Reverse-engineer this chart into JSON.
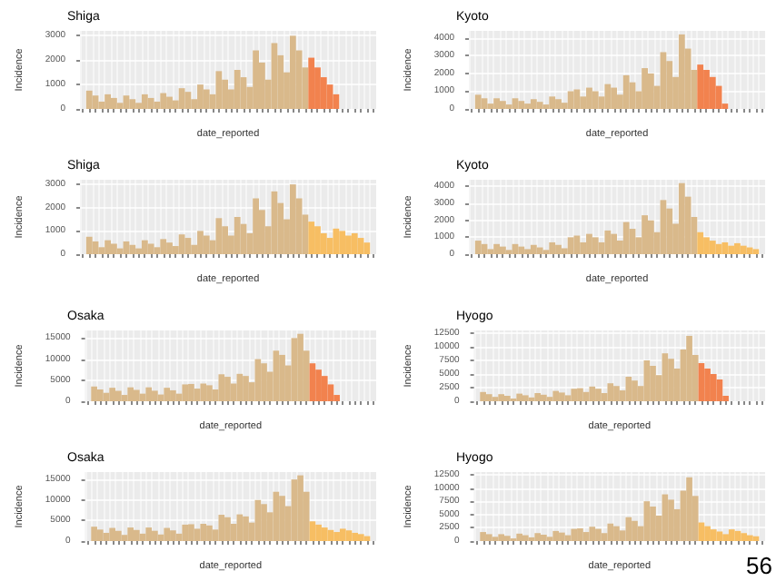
{
  "chart_data": [
    {
      "type": "bar",
      "title": "Shiga",
      "xlabel": "date_reported",
      "ylabel": "Incidence",
      "categories": [
        null,
        null,
        null,
        null,
        null,
        null,
        null,
        null,
        null,
        null,
        null,
        null,
        null,
        null,
        null,
        null,
        null,
        null,
        null,
        null,
        null,
        null,
        null,
        null,
        null,
        null,
        null,
        null,
        null,
        null,
        null,
        null,
        null,
        null,
        null,
        null,
        null,
        null,
        null,
        null,
        null,
        null,
        null,
        null,
        null,
        null,
        null,
        null
      ],
      "values": [
        null,
        750,
        550,
        300,
        600,
        450,
        250,
        550,
        400,
        250,
        600,
        450,
        300,
        650,
        500,
        350,
        850,
        700,
        400,
        1000,
        800,
        600,
        1550,
        1200,
        800,
        1600,
        1300,
        900,
        2400,
        1900,
        1200,
        2700,
        2200,
        1500,
        3000,
        2400,
        1700,
        2100,
        1700,
        1300,
        1000,
        600,
        null,
        null,
        null,
        null,
        null,
        null
      ],
      "colors": [
        "#d9b98b",
        "#d9b98b",
        "#d9b98b",
        "#d9b98b",
        "#d9b98b",
        "#d9b98b",
        "#d9b98b",
        "#d9b98b",
        "#d9b98b",
        "#d9b98b",
        "#d9b98b",
        "#d9b98b",
        "#d9b98b",
        "#d9b98b",
        "#d9b98b",
        "#d9b98b",
        "#d9b98b",
        "#d9b98b",
        "#d9b98b",
        "#d9b98b",
        "#d9b98b",
        "#d9b98b",
        "#d9b98b",
        "#d9b98b",
        "#d9b98b",
        "#d9b98b",
        "#d9b98b",
        "#d9b98b",
        "#d9b98b",
        "#d9b98b",
        "#d9b98b",
        "#d9b98b",
        "#d9b98b",
        "#d9b98b",
        "#d9b98b",
        "#d9b98b",
        "#d9b98b",
        "#f2824e",
        "#f2824e",
        "#f2824e",
        "#f2824e",
        "#f2824e",
        "#f2824e",
        "#f2824e",
        "#f2824e",
        "#f2824e",
        "#f2824e",
        "#f2824e"
      ],
      "ylim": [
        0,
        3200
      ],
      "yticks": [
        0,
        1000,
        2000,
        3000
      ],
      "grid": true,
      "tick_labels": "y"
    },
    {
      "type": "bar",
      "title": "Kyoto",
      "xlabel": "date_reported",
      "ylabel": "Incidence",
      "categories": [
        null,
        null,
        null,
        null,
        null,
        null,
        null,
        null,
        null,
        null,
        null,
        null,
        null,
        null,
        null,
        null,
        null,
        null,
        null,
        null,
        null,
        null,
        null,
        null,
        null,
        null,
        null,
        null,
        null,
        null,
        null,
        null,
        null,
        null,
        null,
        null,
        null,
        null,
        null,
        null,
        null,
        null,
        null,
        null,
        null,
        null,
        null,
        null
      ],
      "values": [
        null,
        800,
        600,
        300,
        600,
        450,
        250,
        600,
        450,
        300,
        550,
        400,
        250,
        700,
        550,
        350,
        1000,
        1100,
        700,
        1200,
        1000,
        700,
        1400,
        1200,
        800,
        1900,
        1500,
        1000,
        2300,
        2000,
        1300,
        3200,
        2700,
        1800,
        4200,
        3400,
        2200,
        2500,
        2200,
        1800,
        1300,
        300,
        null,
        null,
        null,
        null,
        null,
        null
      ],
      "colors": [
        "#d9b98b",
        "#d9b98b",
        "#d9b98b",
        "#d9b98b",
        "#d9b98b",
        "#d9b98b",
        "#d9b98b",
        "#d9b98b",
        "#d9b98b",
        "#d9b98b",
        "#d9b98b",
        "#d9b98b",
        "#d9b98b",
        "#d9b98b",
        "#d9b98b",
        "#d9b98b",
        "#d9b98b",
        "#d9b98b",
        "#d9b98b",
        "#d9b98b",
        "#d9b98b",
        "#d9b98b",
        "#d9b98b",
        "#d9b98b",
        "#d9b98b",
        "#d9b98b",
        "#d9b98b",
        "#d9b98b",
        "#d9b98b",
        "#d9b98b",
        "#d9b98b",
        "#d9b98b",
        "#d9b98b",
        "#d9b98b",
        "#d9b98b",
        "#d9b98b",
        "#d9b98b",
        "#f2824e",
        "#f2824e",
        "#f2824e",
        "#f2824e",
        "#f2824e",
        "#f2824e",
        "#f2824e",
        "#f2824e",
        "#f2824e",
        "#f2824e",
        "#f2824e"
      ],
      "ylim": [
        0,
        4400
      ],
      "yticks": [
        0,
        1000,
        2000,
        3000,
        4000
      ],
      "grid": true,
      "tick_labels": "y"
    },
    {
      "type": "bar",
      "title": "Shiga",
      "xlabel": "date_reported",
      "ylabel": "Incidence",
      "categories": [
        null,
        null,
        null,
        null,
        null,
        null,
        null,
        null,
        null,
        null,
        null,
        null,
        null,
        null,
        null,
        null,
        null,
        null,
        null,
        null,
        null,
        null,
        null,
        null,
        null,
        null,
        null,
        null,
        null,
        null,
        null,
        null,
        null,
        null,
        null,
        null,
        null,
        null,
        null,
        null,
        null,
        null,
        null,
        null,
        null,
        null,
        null,
        null
      ],
      "values": [
        null,
        750,
        550,
        300,
        600,
        450,
        250,
        550,
        400,
        250,
        600,
        450,
        300,
        650,
        500,
        350,
        850,
        700,
        400,
        1000,
        800,
        600,
        1550,
        1200,
        800,
        1600,
        1300,
        900,
        2400,
        1900,
        1200,
        2700,
        2200,
        1500,
        3000,
        2400,
        1700,
        1400,
        1200,
        900,
        700,
        1100,
        1000,
        800,
        900,
        700,
        500,
        null
      ],
      "colors": [
        "#d9b98b",
        "#d9b98b",
        "#d9b98b",
        "#d9b98b",
        "#d9b98b",
        "#d9b98b",
        "#d9b98b",
        "#d9b98b",
        "#d9b98b",
        "#d9b98b",
        "#d9b98b",
        "#d9b98b",
        "#d9b98b",
        "#d9b98b",
        "#d9b98b",
        "#d9b98b",
        "#d9b98b",
        "#d9b98b",
        "#d9b98b",
        "#d9b98b",
        "#d9b98b",
        "#d9b98b",
        "#d9b98b",
        "#d9b98b",
        "#d9b98b",
        "#d9b98b",
        "#d9b98b",
        "#d9b98b",
        "#d9b98b",
        "#d9b98b",
        "#d9b98b",
        "#d9b98b",
        "#d9b98b",
        "#d9b98b",
        "#d9b98b",
        "#d9b98b",
        "#d9b98b",
        "#f7be63",
        "#f7be63",
        "#f7be63",
        "#f7be63",
        "#f7be63",
        "#f7be63",
        "#f7be63",
        "#f7be63",
        "#f7be63",
        "#f7be63",
        "#f7be63"
      ],
      "ylim": [
        0,
        3200
      ],
      "yticks": [
        0,
        1000,
        2000,
        3000
      ],
      "grid": true,
      "tick_labels": "y"
    },
    {
      "type": "bar",
      "title": "Kyoto",
      "xlabel": "date_reported",
      "ylabel": "Incidence",
      "categories": [
        null,
        null,
        null,
        null,
        null,
        null,
        null,
        null,
        null,
        null,
        null,
        null,
        null,
        null,
        null,
        null,
        null,
        null,
        null,
        null,
        null,
        null,
        null,
        null,
        null,
        null,
        null,
        null,
        null,
        null,
        null,
        null,
        null,
        null,
        null,
        null,
        null,
        null,
        null,
        null,
        null,
        null,
        null,
        null,
        null,
        null,
        null,
        null
      ],
      "values": [
        null,
        800,
        600,
        300,
        600,
        450,
        250,
        600,
        450,
        300,
        550,
        400,
        250,
        700,
        550,
        350,
        1000,
        1100,
        700,
        1200,
        1000,
        700,
        1400,
        1200,
        800,
        1900,
        1500,
        1000,
        2300,
        2000,
        1300,
        3200,
        2700,
        1800,
        4200,
        3400,
        2200,
        1300,
        1000,
        800,
        600,
        700,
        500,
        650,
        500,
        400,
        300,
        null
      ],
      "colors": [
        "#d9b98b",
        "#d9b98b",
        "#d9b98b",
        "#d9b98b",
        "#d9b98b",
        "#d9b98b",
        "#d9b98b",
        "#d9b98b",
        "#d9b98b",
        "#d9b98b",
        "#d9b98b",
        "#d9b98b",
        "#d9b98b",
        "#d9b98b",
        "#d9b98b",
        "#d9b98b",
        "#d9b98b",
        "#d9b98b",
        "#d9b98b",
        "#d9b98b",
        "#d9b98b",
        "#d9b98b",
        "#d9b98b",
        "#d9b98b",
        "#d9b98b",
        "#d9b98b",
        "#d9b98b",
        "#d9b98b",
        "#d9b98b",
        "#d9b98b",
        "#d9b98b",
        "#d9b98b",
        "#d9b98b",
        "#d9b98b",
        "#d9b98b",
        "#d9b98b",
        "#d9b98b",
        "#f7be63",
        "#f7be63",
        "#f7be63",
        "#f7be63",
        "#f7be63",
        "#f7be63",
        "#f7be63",
        "#f7be63",
        "#f7be63",
        "#f7be63",
        "#f7be63"
      ],
      "ylim": [
        0,
        4400
      ],
      "yticks": [
        0,
        1000,
        2000,
        3000,
        4000
      ],
      "grid": true,
      "tick_labels": "y"
    },
    {
      "type": "bar",
      "title": "Osaka",
      "xlabel": "date_reported",
      "ylabel": "Incidence",
      "categories": [
        null,
        null,
        null,
        null,
        null,
        null,
        null,
        null,
        null,
        null,
        null,
        null,
        null,
        null,
        null,
        null,
        null,
        null,
        null,
        null,
        null,
        null,
        null,
        null,
        null,
        null,
        null,
        null,
        null,
        null,
        null,
        null,
        null,
        null,
        null,
        null,
        null,
        null,
        null,
        null,
        null,
        null,
        null,
        null,
        null,
        null,
        null,
        null
      ],
      "values": [
        null,
        3500,
        2800,
        2000,
        3200,
        2500,
        1500,
        3300,
        2700,
        1800,
        3300,
        2500,
        1600,
        3200,
        2600,
        1800,
        4000,
        4100,
        3000,
        4200,
        3800,
        2800,
        6400,
        5800,
        4200,
        6500,
        6000,
        4500,
        10000,
        9000,
        7000,
        12000,
        11000,
        8500,
        15000,
        16000,
        12000,
        9000,
        7500,
        6000,
        4000,
        1500,
        null,
        null,
        null,
        null,
        null,
        null
      ],
      "colors": [
        "#d9b98b",
        "#d9b98b",
        "#d9b98b",
        "#d9b98b",
        "#d9b98b",
        "#d9b98b",
        "#d9b98b",
        "#d9b98b",
        "#d9b98b",
        "#d9b98b",
        "#d9b98b",
        "#d9b98b",
        "#d9b98b",
        "#d9b98b",
        "#d9b98b",
        "#d9b98b",
        "#d9b98b",
        "#d9b98b",
        "#d9b98b",
        "#d9b98b",
        "#d9b98b",
        "#d9b98b",
        "#d9b98b",
        "#d9b98b",
        "#d9b98b",
        "#d9b98b",
        "#d9b98b",
        "#d9b98b",
        "#d9b98b",
        "#d9b98b",
        "#d9b98b",
        "#d9b98b",
        "#d9b98b",
        "#d9b98b",
        "#d9b98b",
        "#d9b98b",
        "#d9b98b",
        "#f2824e",
        "#f2824e",
        "#f2824e",
        "#f2824e",
        "#f2824e",
        "#f2824e",
        "#f2824e",
        "#f2824e",
        "#f2824e",
        "#f2824e",
        "#f2824e"
      ],
      "ylim": [
        0,
        16800
      ],
      "yticks": [
        0,
        5000,
        10000,
        15000
      ],
      "grid": true,
      "tick_labels": "y"
    },
    {
      "type": "bar",
      "title": "Hyogo",
      "xlabel": "date_reported",
      "ylabel": "Incidence",
      "categories": [
        null,
        null,
        null,
        null,
        null,
        null,
        null,
        null,
        null,
        null,
        null,
        null,
        null,
        null,
        null,
        null,
        null,
        null,
        null,
        null,
        null,
        null,
        null,
        null,
        null,
        null,
        null,
        null,
        null,
        null,
        null,
        null,
        null,
        null,
        null,
        null,
        null,
        null,
        null,
        null,
        null,
        null,
        null,
        null,
        null,
        null,
        null,
        null
      ],
      "values": [
        null,
        1700,
        1300,
        800,
        1300,
        1000,
        500,
        1400,
        1100,
        700,
        1500,
        1200,
        800,
        1900,
        1600,
        1100,
        2300,
        2400,
        1700,
        2700,
        2300,
        1500,
        3300,
        2800,
        2000,
        4500,
        3800,
        2800,
        7500,
        6500,
        4800,
        8800,
        7800,
        6000,
        9500,
        12000,
        8500,
        7000,
        6000,
        5000,
        4000,
        1000,
        null,
        null,
        null,
        null,
        null,
        null
      ],
      "colors": [
        "#d9b98b",
        "#d9b98b",
        "#d9b98b",
        "#d9b98b",
        "#d9b98b",
        "#d9b98b",
        "#d9b98b",
        "#d9b98b",
        "#d9b98b",
        "#d9b98b",
        "#d9b98b",
        "#d9b98b",
        "#d9b98b",
        "#d9b98b",
        "#d9b98b",
        "#d9b98b",
        "#d9b98b",
        "#d9b98b",
        "#d9b98b",
        "#d9b98b",
        "#d9b98b",
        "#d9b98b",
        "#d9b98b",
        "#d9b98b",
        "#d9b98b",
        "#d9b98b",
        "#d9b98b",
        "#d9b98b",
        "#d9b98b",
        "#d9b98b",
        "#d9b98b",
        "#d9b98b",
        "#d9b98b",
        "#d9b98b",
        "#d9b98b",
        "#d9b98b",
        "#d9b98b",
        "#f2824e",
        "#f2824e",
        "#f2824e",
        "#f2824e",
        "#f2824e",
        "#f2824e",
        "#f2824e",
        "#f2824e",
        "#f2824e",
        "#f2824e",
        "#f2824e"
      ],
      "ylim": [
        0,
        13000
      ],
      "yticks": [
        0,
        2500,
        5000,
        7500,
        10000,
        12500
      ],
      "grid": true,
      "tick_labels": "y"
    },
    {
      "type": "bar",
      "title": "Osaka",
      "xlabel": "date_reported",
      "ylabel": "Incidence",
      "categories": [
        null,
        null,
        null,
        null,
        null,
        null,
        null,
        null,
        null,
        null,
        null,
        null,
        null,
        null,
        null,
        null,
        null,
        null,
        null,
        null,
        null,
        null,
        null,
        null,
        null,
        null,
        null,
        null,
        null,
        null,
        null,
        null,
        null,
        null,
        null,
        null,
        null,
        null,
        null,
        null,
        null,
        null,
        null,
        null,
        null,
        null,
        null,
        null
      ],
      "values": [
        null,
        3500,
        2800,
        2000,
        3200,
        2500,
        1500,
        3300,
        2700,
        1800,
        3300,
        2500,
        1600,
        3200,
        2600,
        1800,
        4000,
        4100,
        3000,
        4200,
        3800,
        2800,
        6400,
        5800,
        4200,
        6500,
        6000,
        4500,
        10000,
        9000,
        7000,
        12000,
        11000,
        8500,
        15000,
        16000,
        12000,
        4800,
        4000,
        3300,
        2700,
        2200,
        3000,
        2600,
        2000,
        1700,
        1200,
        null
      ],
      "colors": [
        "#d9b98b",
        "#d9b98b",
        "#d9b98b",
        "#d9b98b",
        "#d9b98b",
        "#d9b98b",
        "#d9b98b",
        "#d9b98b",
        "#d9b98b",
        "#d9b98b",
        "#d9b98b",
        "#d9b98b",
        "#d9b98b",
        "#d9b98b",
        "#d9b98b",
        "#d9b98b",
        "#d9b98b",
        "#d9b98b",
        "#d9b98b",
        "#d9b98b",
        "#d9b98b",
        "#d9b98b",
        "#d9b98b",
        "#d9b98b",
        "#d9b98b",
        "#d9b98b",
        "#d9b98b",
        "#d9b98b",
        "#d9b98b",
        "#d9b98b",
        "#d9b98b",
        "#d9b98b",
        "#d9b98b",
        "#d9b98b",
        "#d9b98b",
        "#d9b98b",
        "#d9b98b",
        "#f7be63",
        "#f7be63",
        "#f7be63",
        "#f7be63",
        "#f7be63",
        "#f7be63",
        "#f7be63",
        "#f7be63",
        "#f7be63",
        "#f7be63",
        "#f7be63"
      ],
      "ylim": [
        0,
        16800
      ],
      "yticks": [
        0,
        5000,
        10000,
        15000
      ],
      "grid": true,
      "tick_labels": "y"
    },
    {
      "type": "bar",
      "title": "Hyogo",
      "xlabel": "date_reported",
      "ylabel": "Incidence",
      "annotations": [
        "56"
      ],
      "categories": [
        null,
        null,
        null,
        null,
        null,
        null,
        null,
        null,
        null,
        null,
        null,
        null,
        null,
        null,
        null,
        null,
        null,
        null,
        null,
        null,
        null,
        null,
        null,
        null,
        null,
        null,
        null,
        null,
        null,
        null,
        null,
        null,
        null,
        null,
        null,
        null,
        null,
        null,
        null,
        null,
        null,
        null,
        null,
        null,
        null,
        null,
        null,
        null
      ],
      "values": [
        null,
        1700,
        1300,
        800,
        1300,
        1000,
        500,
        1400,
        1100,
        700,
        1500,
        1200,
        800,
        1900,
        1600,
        1100,
        2300,
        2400,
        1700,
        2700,
        2300,
        1500,
        3300,
        2800,
        2000,
        4500,
        3800,
        2800,
        7500,
        6500,
        4800,
        8800,
        7800,
        6000,
        9500,
        12000,
        8500,
        3500,
        2800,
        2200,
        1800,
        1300,
        2200,
        1900,
        1500,
        1100,
        900,
        null
      ],
      "colors": [
        "#d9b98b",
        "#d9b98b",
        "#d9b98b",
        "#d9b98b",
        "#d9b98b",
        "#d9b98b",
        "#d9b98b",
        "#d9b98b",
        "#d9b98b",
        "#d9b98b",
        "#d9b98b",
        "#d9b98b",
        "#d9b98b",
        "#d9b98b",
        "#d9b98b",
        "#d9b98b",
        "#d9b98b",
        "#d9b98b",
        "#d9b98b",
        "#d9b98b",
        "#d9b98b",
        "#d9b98b",
        "#d9b98b",
        "#d9b98b",
        "#d9b98b",
        "#d9b98b",
        "#d9b98b",
        "#d9b98b",
        "#d9b98b",
        "#d9b98b",
        "#d9b98b",
        "#d9b98b",
        "#d9b98b",
        "#d9b98b",
        "#d9b98b",
        "#d9b98b",
        "#d9b98b",
        "#f7be63",
        "#f7be63",
        "#f7be63",
        "#f7be63",
        "#f7be63",
        "#f7be63",
        "#f7be63",
        "#f7be63",
        "#f7be63",
        "#f7be63",
        "#f7be63"
      ],
      "ylim": [
        0,
        13000
      ],
      "yticks": [
        0,
        2500,
        5000,
        7500,
        10000,
        12500
      ],
      "grid": true,
      "tick_labels": "y"
    }
  ]
}
